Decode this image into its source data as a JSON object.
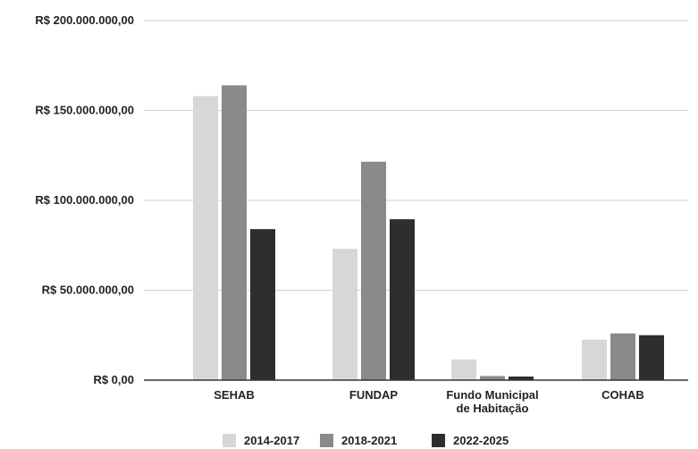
{
  "chart_data": {
    "type": "bar",
    "title": "",
    "xlabel": "",
    "ylabel": "",
    "categories": [
      [
        "SEHAB"
      ],
      [
        "FUNDAP"
      ],
      [
        "Fundo Municipal",
        "de Habitação"
      ],
      [
        "COHAB"
      ]
    ],
    "series": [
      {
        "name": "2014-2017",
        "color": "#d7d7d7",
        "values": [
          158000000,
          73000000,
          11500000,
          22500000
        ]
      },
      {
        "name": "2018-2021",
        "color": "#8a8a8a",
        "values": [
          164000000,
          121500000,
          2300000,
          26000000
        ]
      },
      {
        "name": "2022-2025",
        "color": "#2e2e2e",
        "values": [
          84000000,
          89500000,
          2000000,
          25000000
        ]
      }
    ],
    "y_ticks": [
      {
        "value": 0,
        "label": "R$ 0,00"
      },
      {
        "value": 50000000,
        "label": "R$ 50.000.000,00"
      },
      {
        "value": 100000000,
        "label": "R$ 100.000.000,00"
      },
      {
        "value": 150000000,
        "label": "R$ 150.000.000,00"
      },
      {
        "value": 200000000,
        "label": "R$ 200.000.000,00"
      }
    ],
    "ylim": [
      0,
      200000000
    ],
    "grid": true,
    "legend_position": "bottom"
  }
}
